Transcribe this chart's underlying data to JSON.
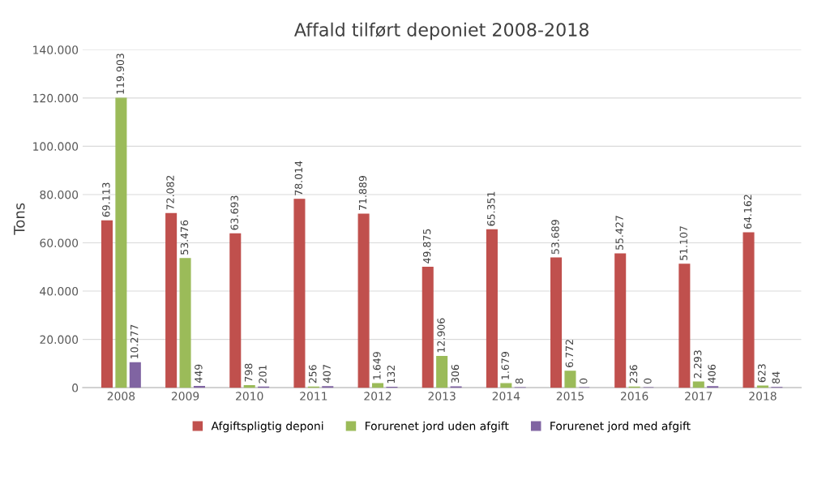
{
  "chart_data": {
    "type": "bar",
    "title": "Affald tilført deponiet 2008-2018",
    "ylabel": "Tons",
    "categories": [
      "2008",
      "2009",
      "2010",
      "2011",
      "2012",
      "2013",
      "2014",
      "2015",
      "2016",
      "2017",
      "2018"
    ],
    "series": [
      {
        "name": "Afgiftspligtig deponi",
        "color": "#c0504d",
        "values": [
          69113,
          72082,
          63693,
          78014,
          71889,
          49875,
          65351,
          53689,
          55427,
          51107,
          64162
        ],
        "value_labels": [
          "69.113",
          "72.082",
          "63.693",
          "78.014",
          "71.889",
          "49.875",
          "65.351",
          "53.689",
          "55.427",
          "51.107",
          "64.162"
        ]
      },
      {
        "name": "Forurenet jord uden afgift",
        "color": "#9bbb59",
        "values": [
          119903,
          53476,
          798,
          256,
          1649,
          12906,
          1679,
          6772,
          236,
          2293,
          623
        ],
        "value_labels": [
          "119.903",
          "53.476",
          "798",
          "256",
          "1.649",
          "12.906",
          "1.679",
          "6.772",
          "236",
          "2.293",
          "623"
        ]
      },
      {
        "name": "Forurenet jord med afgift",
        "color": "#8064a2",
        "values": [
          10277,
          449,
          201,
          407,
          132,
          306,
          8,
          0,
          0,
          406,
          84
        ],
        "value_labels": [
          "10.277",
          "449",
          "201",
          "407",
          "132",
          "306",
          "8",
          "0",
          "0",
          "406",
          "84"
        ]
      }
    ],
    "ylim": [
      0,
      140000
    ],
    "yticks": [
      0,
      {
        "value": 20000,
        "label": "20.000"
      },
      {
        "value": 40000,
        "label": "40.000"
      },
      {
        "value": 60000,
        "label": "60.000"
      },
      {
        "value": 80000,
        "label": "80.000"
      },
      {
        "value": 100000,
        "label": "100.000"
      },
      {
        "value": 120000,
        "label": "120.000"
      },
      {
        "value": 140000,
        "label": "140.000"
      }
    ],
    "grid": "y",
    "legend": "bottom"
  }
}
